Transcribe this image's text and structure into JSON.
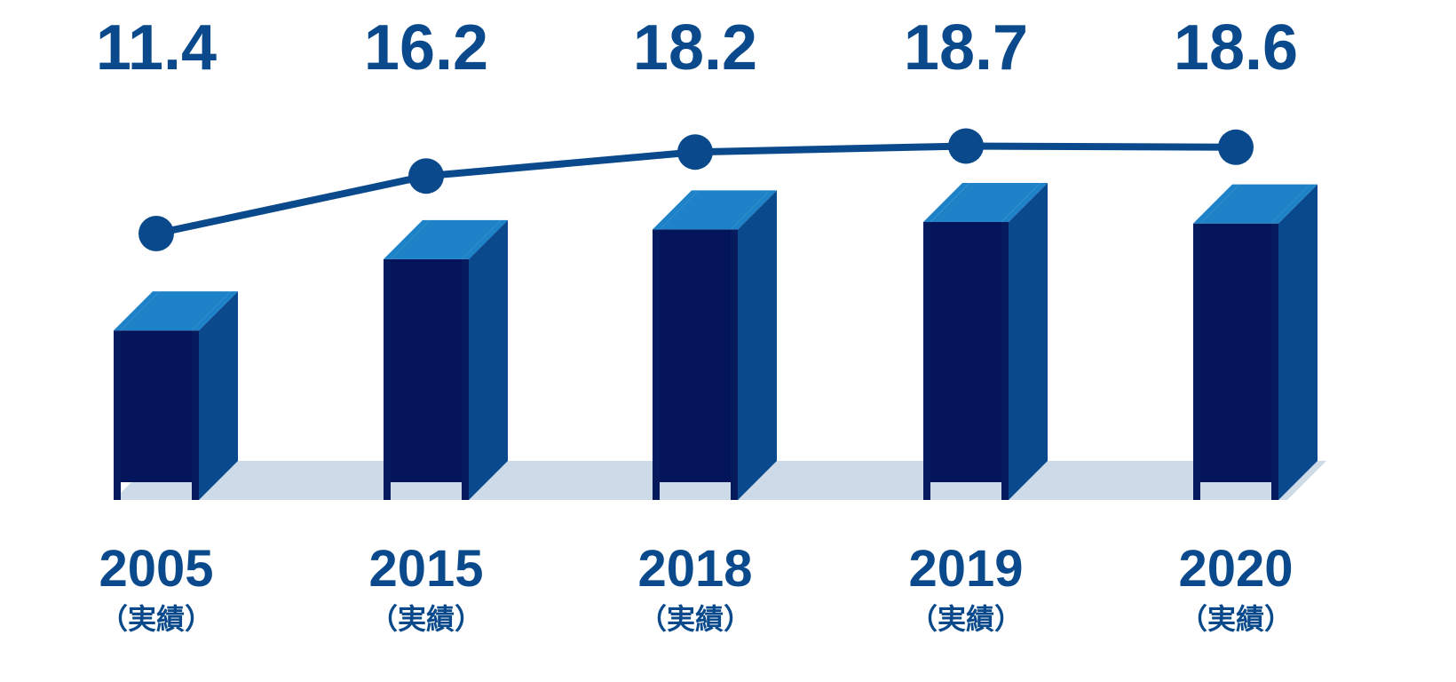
{
  "chart_data": {
    "type": "bar",
    "categories": [
      "2005",
      "2015",
      "2018",
      "2019",
      "2020"
    ],
    "category_notes": [
      "（実績）",
      "（実績）",
      "（実績）",
      "（実績）",
      "（実績）"
    ],
    "values": [
      11.4,
      16.2,
      18.2,
      18.7,
      18.6
    ],
    "value_labels": [
      "11.4",
      "16.2",
      "18.2",
      "18.7",
      "18.6"
    ],
    "title": "",
    "xlabel": "",
    "ylabel": "",
    "overlay_line": true,
    "grid": false,
    "legend": "none",
    "colors": {
      "front": "#0a4a8c",
      "web": "#03145a",
      "edge": "#061a5e",
      "top": "#1e82c8",
      "floor": "#cddbe8",
      "line": "#0a4a8c",
      "text": "#0a4a8c"
    }
  }
}
